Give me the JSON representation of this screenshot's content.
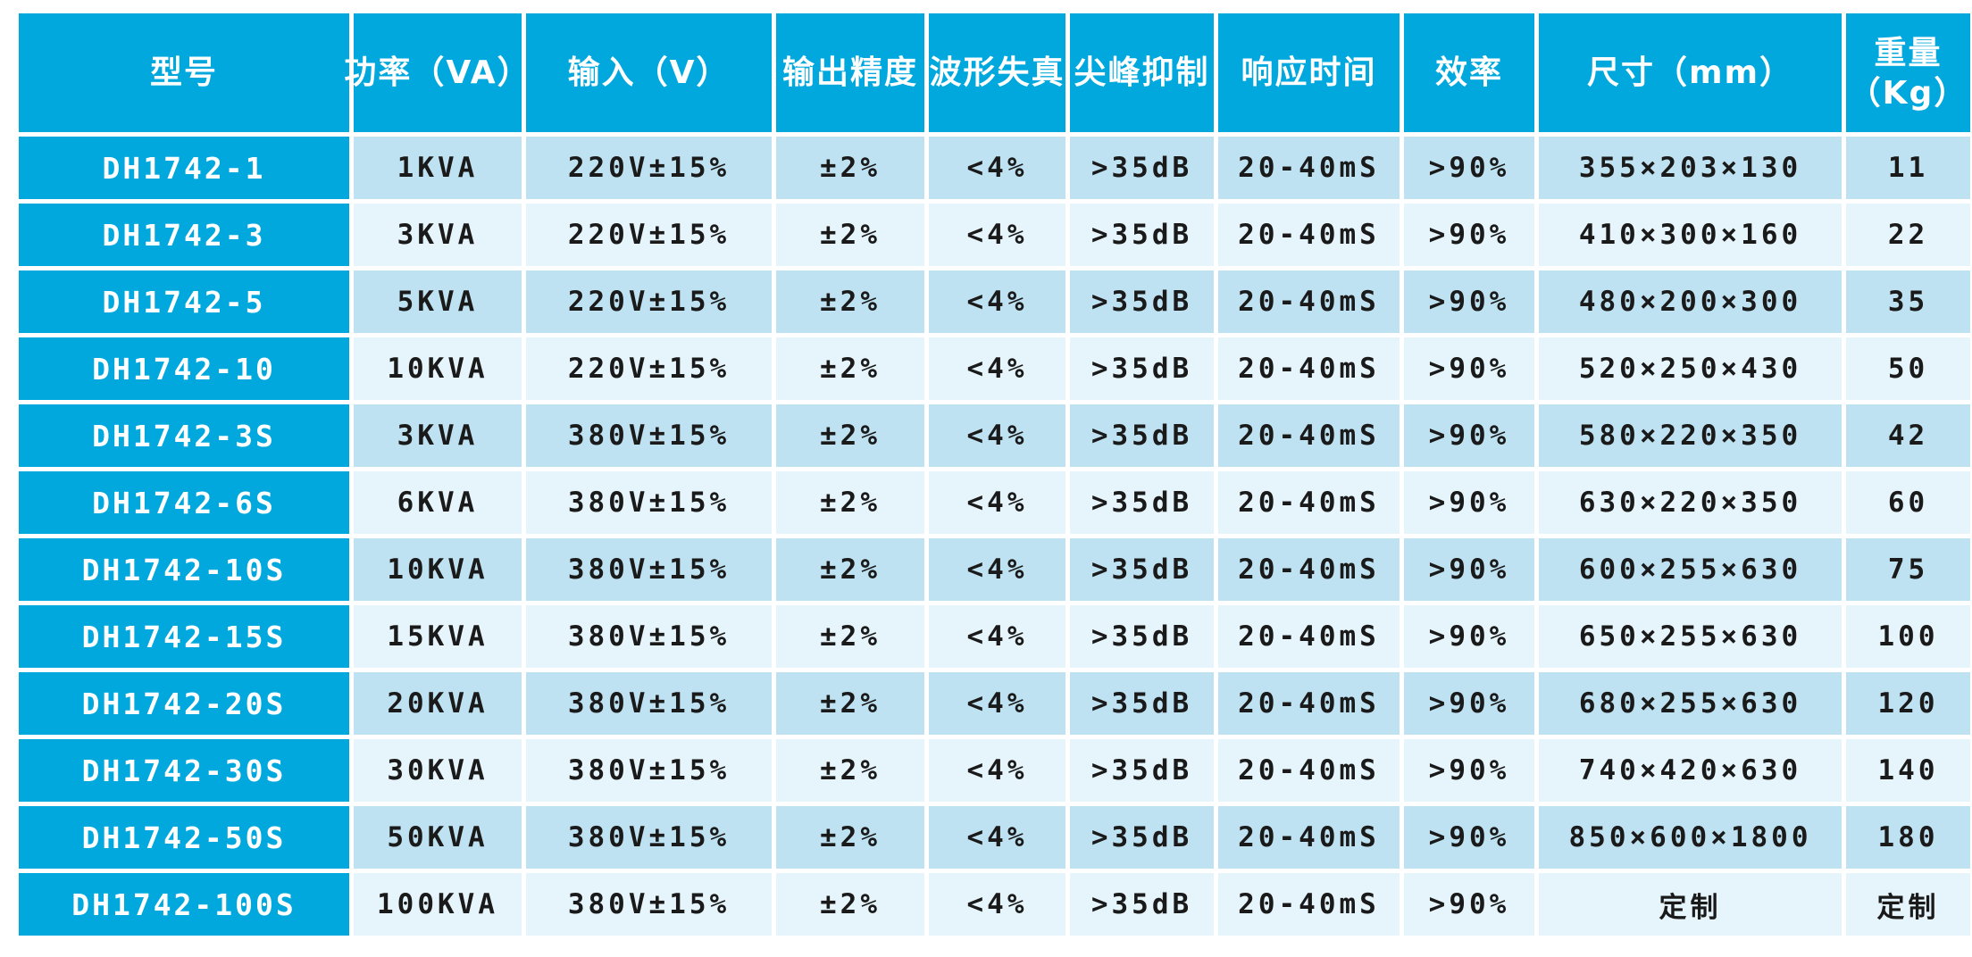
{
  "colors": {
    "header_bg": "#00A8DE",
    "model_column_bg": "#00A8DE",
    "row_odd_bg": "#BFE2F2",
    "row_even_bg": "#E6F4FB",
    "grid_gap": "#FFFFFF",
    "data_text": "#1A1A1A",
    "header_text": "#FFFFFF"
  },
  "chart_data": {
    "type": "table",
    "title": "",
    "columns": [
      "型号",
      "功率（VA）",
      "输入（V）",
      "输出精度",
      "波形失真",
      "尖峰抑制",
      "响应时间",
      "效率",
      "尺寸（mm）",
      "重量（Kg）"
    ],
    "column_ids": [
      "model",
      "power-va",
      "input-v",
      "output-accuracy",
      "waveform-distortion",
      "spike-suppression",
      "response-time",
      "efficiency",
      "dimensions-mm",
      "weight-kg"
    ],
    "header_lines": [
      [
        "型号"
      ],
      [
        "功率（VA）"
      ],
      [
        "输入（V）"
      ],
      [
        "输出精度"
      ],
      [
        "波形失真"
      ],
      [
        "尖峰抑制"
      ],
      [
        "响应时间"
      ],
      [
        "效率"
      ],
      [
        "尺寸（mm）"
      ],
      [
        "重量",
        "（Kg）"
      ]
    ],
    "rows": [
      [
        "DH1742-1",
        "1KVA",
        "220V±15%",
        "±2%",
        "<4%",
        ">35dB",
        "20-40mS",
        ">90%",
        "355×203×130",
        "11"
      ],
      [
        "DH1742-3",
        "3KVA",
        "220V±15%",
        "±2%",
        "<4%",
        ">35dB",
        "20-40mS",
        ">90%",
        "410×300×160",
        "22"
      ],
      [
        "DH1742-5",
        "5KVA",
        "220V±15%",
        "±2%",
        "<4%",
        ">35dB",
        "20-40mS",
        ">90%",
        "480×200×300",
        "35"
      ],
      [
        "DH1742-10",
        "10KVA",
        "220V±15%",
        "±2%",
        "<4%",
        ">35dB",
        "20-40mS",
        ">90%",
        "520×250×430",
        "50"
      ],
      [
        "DH1742-3S",
        "3KVA",
        "380V±15%",
        "±2%",
        "<4%",
        ">35dB",
        "20-40mS",
        ">90%",
        "580×220×350",
        "42"
      ],
      [
        "DH1742-6S",
        "6KVA",
        "380V±15%",
        "±2%",
        "<4%",
        ">35dB",
        "20-40mS",
        ">90%",
        "630×220×350",
        "60"
      ],
      [
        "DH1742-10S",
        "10KVA",
        "380V±15%",
        "±2%",
        "<4%",
        ">35dB",
        "20-40mS",
        ">90%",
        "600×255×630",
        "75"
      ],
      [
        "DH1742-15S",
        "15KVA",
        "380V±15%",
        "±2%",
        "<4%",
        ">35dB",
        "20-40mS",
        ">90%",
        "650×255×630",
        "100"
      ],
      [
        "DH1742-20S",
        "20KVA",
        "380V±15%",
        "±2%",
        "<4%",
        ">35dB",
        "20-40mS",
        ">90%",
        "680×255×630",
        "120"
      ],
      [
        "DH1742-30S",
        "30KVA",
        "380V±15%",
        "±2%",
        "<4%",
        ">35dB",
        "20-40mS",
        ">90%",
        "740×420×630",
        "140"
      ],
      [
        "DH1742-50S",
        "50KVA",
        "380V±15%",
        "±2%",
        "<4%",
        ">35dB",
        "20-40mS",
        ">90%",
        "850×600×1800",
        "180"
      ],
      [
        "DH1742-100S",
        "100KVA",
        "380V±15%",
        "±2%",
        "<4%",
        ">35dB",
        "20-40mS",
        ">90%",
        "定制",
        "定制"
      ]
    ]
  }
}
